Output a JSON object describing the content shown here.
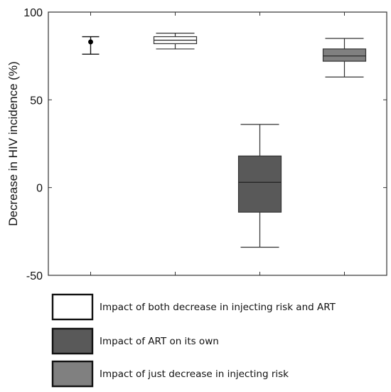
{
  "chart_data": {
    "type": "box",
    "title": "",
    "xlabel": "",
    "ylabel": "Decrease in HIV incidence (%)",
    "ylim": [
      -50,
      100
    ],
    "yticks": [
      -50,
      0,
      50,
      100
    ],
    "grid": false,
    "legend_position": "bottom-left",
    "series": [
      {
        "kind": "errorbar",
        "point": 83,
        "low": 76,
        "high": 86,
        "fill": "#000000"
      },
      {
        "kind": "box",
        "whisker_low": 79,
        "q1": 82,
        "median": 84,
        "q3": 86,
        "whisker_high": 88,
        "fill": "#ffffff"
      },
      {
        "kind": "box",
        "whisker_low": -34,
        "q1": -14,
        "median": 3,
        "q3": 18,
        "whisker_high": 36,
        "fill": "#595959"
      },
      {
        "kind": "box",
        "whisker_low": 63,
        "q1": 72,
        "median": 75,
        "q3": 79,
        "whisker_high": 85,
        "fill": "#808080"
      }
    ],
    "legend": [
      {
        "label": "Impact of both decrease in injecting risk and ART",
        "color": "#ffffff"
      },
      {
        "label": "Impact of ART on its own",
        "color": "#595959"
      },
      {
        "label": "Impact of just decrease in injecting risk",
        "color": "#808080"
      }
    ]
  }
}
